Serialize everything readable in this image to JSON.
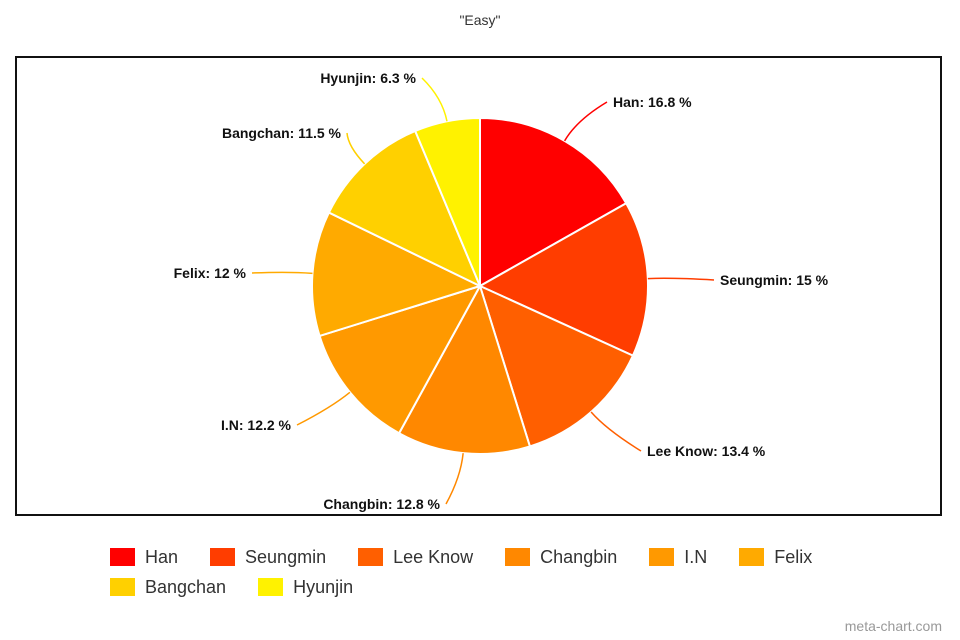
{
  "chart_data": {
    "type": "pie",
    "title": "\"Easy\"",
    "legend_position": "bottom",
    "slices": [
      {
        "name": "Han",
        "value": 16.8,
        "label": "Han: 16.8 %",
        "color": "#ff0000"
      },
      {
        "name": "Seungmin",
        "value": 15,
        "label": "Seungmin: 15 %",
        "color": "#ff3d00"
      },
      {
        "name": "Lee Know",
        "value": 13.4,
        "label": "Lee Know: 13.4 %",
        "color": "#ff5f00"
      },
      {
        "name": "Changbin",
        "value": 12.8,
        "label": "Changbin: 12.8 %",
        "color": "#ff8800"
      },
      {
        "name": "I.N",
        "value": 12.2,
        "label": "I.N: 12.2 %",
        "color": "#ff9900"
      },
      {
        "name": "Felix",
        "value": 12,
        "label": "Felix: 12 %",
        "color": "#ffaa00"
      },
      {
        "name": "Bangchan",
        "value": 11.5,
        "label": "Bangchan: 11.5 %",
        "color": "#ffd000"
      },
      {
        "name": "Hyunjin",
        "value": 6.3,
        "label": "Hyunjin: 6.3 %",
        "color": "#fff200"
      }
    ]
  },
  "watermark": "meta-chart.com"
}
